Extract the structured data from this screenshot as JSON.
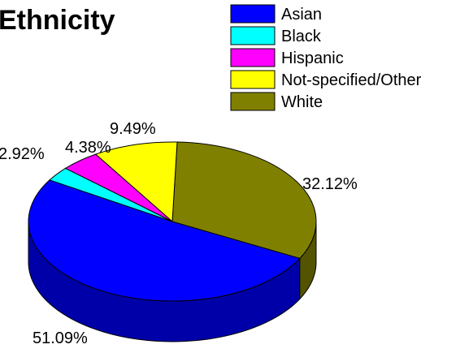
{
  "chart_data": {
    "type": "pie",
    "style": "3d",
    "title": "Ethnicity",
    "legend_position": "top-right",
    "categories": [
      "Asian",
      "Black",
      "Hispanic",
      "Not-specified/Other",
      "White"
    ],
    "values": [
      51.09,
      2.92,
      4.38,
      9.49,
      32.12
    ],
    "labels": [
      "51.09%",
      "2.92%",
      "4.38%",
      "9.49%",
      "32.12%"
    ],
    "colors": [
      "#0000ff",
      "#00ffff",
      "#ff00ff",
      "#ffff00",
      "#808000"
    ],
    "side_colors": [
      "#0000a8",
      "#00a8a8",
      "#a800a8",
      "#a8a800",
      "#545400"
    ]
  }
}
